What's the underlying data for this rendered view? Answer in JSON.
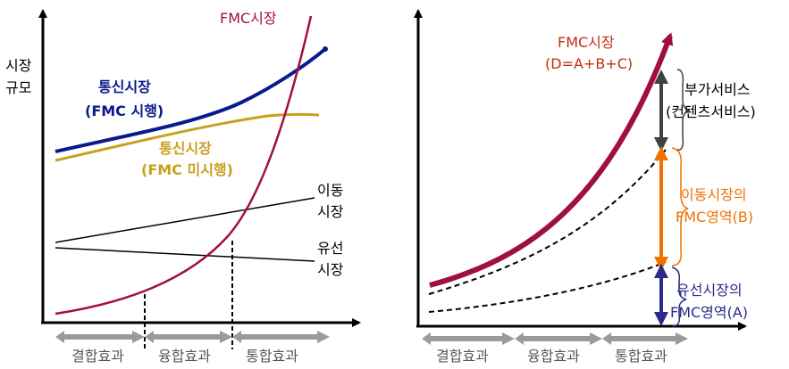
{
  "left_panel": {
    "y_axis_label_line1": "시장",
    "y_axis_label_line2": "규모",
    "fmc_market": "FMC시장",
    "telecom_fmc_line1": "통신시장",
    "telecom_fmc_line2": "(FMC 시행)",
    "telecom_nofmc_line1": "통신시장",
    "telecom_nofmc_line2": "(FMC 미시행)",
    "mobile_line1": "이동",
    "mobile_line2": "시장",
    "wired_line1": "유선",
    "wired_line2": "시장",
    "phases": [
      "결합효과",
      "융합효과",
      "통합효과"
    ]
  },
  "right_panel": {
    "fmc_market_line1": "FMC시장",
    "fmc_market_line2": "(D=A+B+C)",
    "value_added_line1": "부가서비스",
    "value_added_line2": "(컨텐츠서비스)",
    "mobile_fmc_line1": "이동시장의",
    "mobile_fmc_line2": "FMC영역(B)",
    "wired_fmc_line1": "유선시장의",
    "wired_fmc_line2": "FMC영역(A)",
    "phases": [
      "결합효과",
      "융합효과",
      "통합효과"
    ]
  },
  "colors": {
    "fmc": "#a0103a",
    "telecom_fmc": "#0a1a8c",
    "telecom_nofmc": "#c8a020",
    "mobile_area": "#f07000",
    "wired_area": "#2a2a8a",
    "value_added": "#404040",
    "phase_arrow": "#9a9a9a"
  }
}
